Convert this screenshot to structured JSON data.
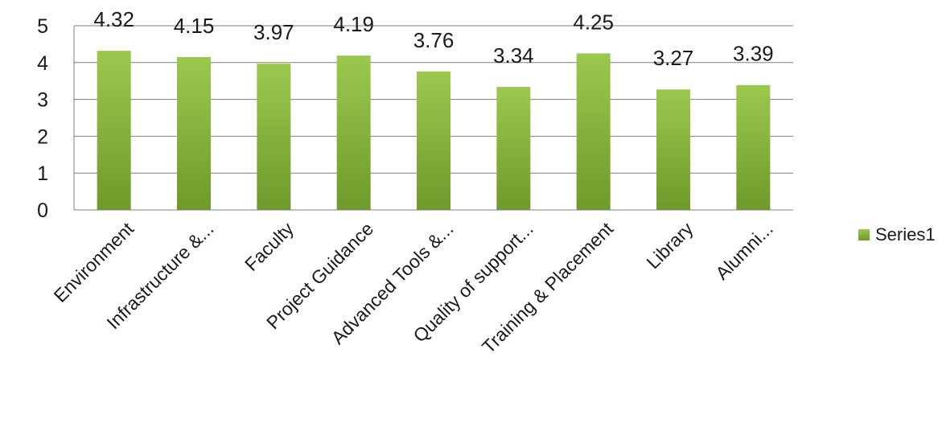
{
  "chart_data": {
    "type": "bar",
    "categories": [
      "Environment",
      "Infrastructure &...",
      "Faculty",
      "Project Guidance",
      "Advanced Tools &...",
      "Quality of support...",
      "Training & Placement",
      "Library",
      "Alumni..."
    ],
    "series": [
      {
        "name": "Series1",
        "values": [
          4.32,
          4.15,
          3.97,
          4.19,
          3.76,
          3.34,
          4.25,
          3.27,
          3.39
        ]
      }
    ],
    "data_labels": [
      "4.32",
      "4.15",
      "3.97",
      "4.19",
      "3.76",
      "3.34",
      "4.25",
      "3.27",
      "3.39"
    ],
    "yticks": [
      "0",
      "1",
      "2",
      "3",
      "4",
      "5"
    ],
    "ylim": [
      0,
      5
    ],
    "grid": true,
    "legend": "right",
    "colors": {
      "bar_top": "#9bc94e",
      "bar_bottom": "#6e9a2a",
      "grid": "#7f7f7f"
    }
  }
}
